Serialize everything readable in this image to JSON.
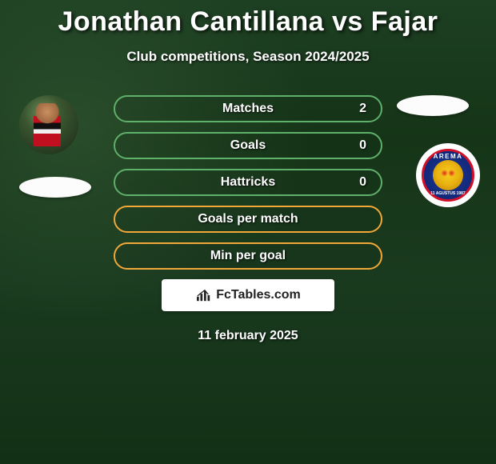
{
  "title": "Jonathan Cantillana vs Fajar",
  "subtitle": "Club competitions, Season 2024/2025",
  "date": "11 february 2025",
  "logo_text": "FcTables.com",
  "club_badge": {
    "top_text": "AREMA",
    "bottom_text": "11 AGUSTUS 1987",
    "outer_bg": "#ffffff",
    "ring_color": "#d01028",
    "inner_bg": "#12287a",
    "lion_color": "#f8d020"
  },
  "colors": {
    "page_bg": "#1a3a1f",
    "title_color": "#ffffff",
    "highlight_border": "#f2a838",
    "normal_border": "#5fb06a",
    "oval_bg": "#fcfcfc",
    "logo_bar_bg": "#ffffff"
  },
  "typography": {
    "title_fontsize": 34,
    "subtitle_fontsize": 17,
    "pill_fontsize": 16,
    "date_fontsize": 16
  },
  "stats": [
    {
      "label": "Matches",
      "value": "2",
      "highlight": false
    },
    {
      "label": "Goals",
      "value": "0",
      "highlight": false
    },
    {
      "label": "Hattricks",
      "value": "0",
      "highlight": false
    },
    {
      "label": "Goals per match",
      "value": "",
      "highlight": true
    },
    {
      "label": "Min per goal",
      "value": "",
      "highlight": true
    }
  ]
}
